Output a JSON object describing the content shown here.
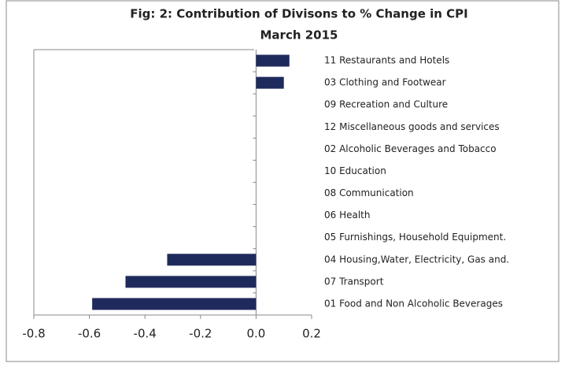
{
  "chart_data": {
    "type": "hbar",
    "title": "Fig: 2: Contribution of Divisons to % Change in CPI",
    "subtitle": "March 2015",
    "categories": [
      "11 Restaurants and Hotels",
      "03 Clothing and Footwear",
      "09 Recreation and Culture",
      "12 Miscellaneous goods and services",
      "02 Alcoholic Beverages and Tobacco",
      "10 Education",
      "08 Communication",
      "06 Health",
      "05 Furnishings, Household Equipment.",
      "04 Housing,Water, Electricity, Gas and.",
      "07 Transport",
      "01 Food and Non Alcoholic Beverages"
    ],
    "values": [
      0.12,
      0.1,
      0,
      0,
      0,
      0,
      0,
      0,
      0,
      -0.32,
      -0.47,
      -0.59
    ],
    "color": "#1f2a5c",
    "xlim": [
      -0.8,
      0.2
    ],
    "xticks": [
      -0.8,
      -0.6,
      -0.4,
      -0.2,
      {
        "value": 0,
        "label": "0.0"
      },
      0.2
    ]
  }
}
